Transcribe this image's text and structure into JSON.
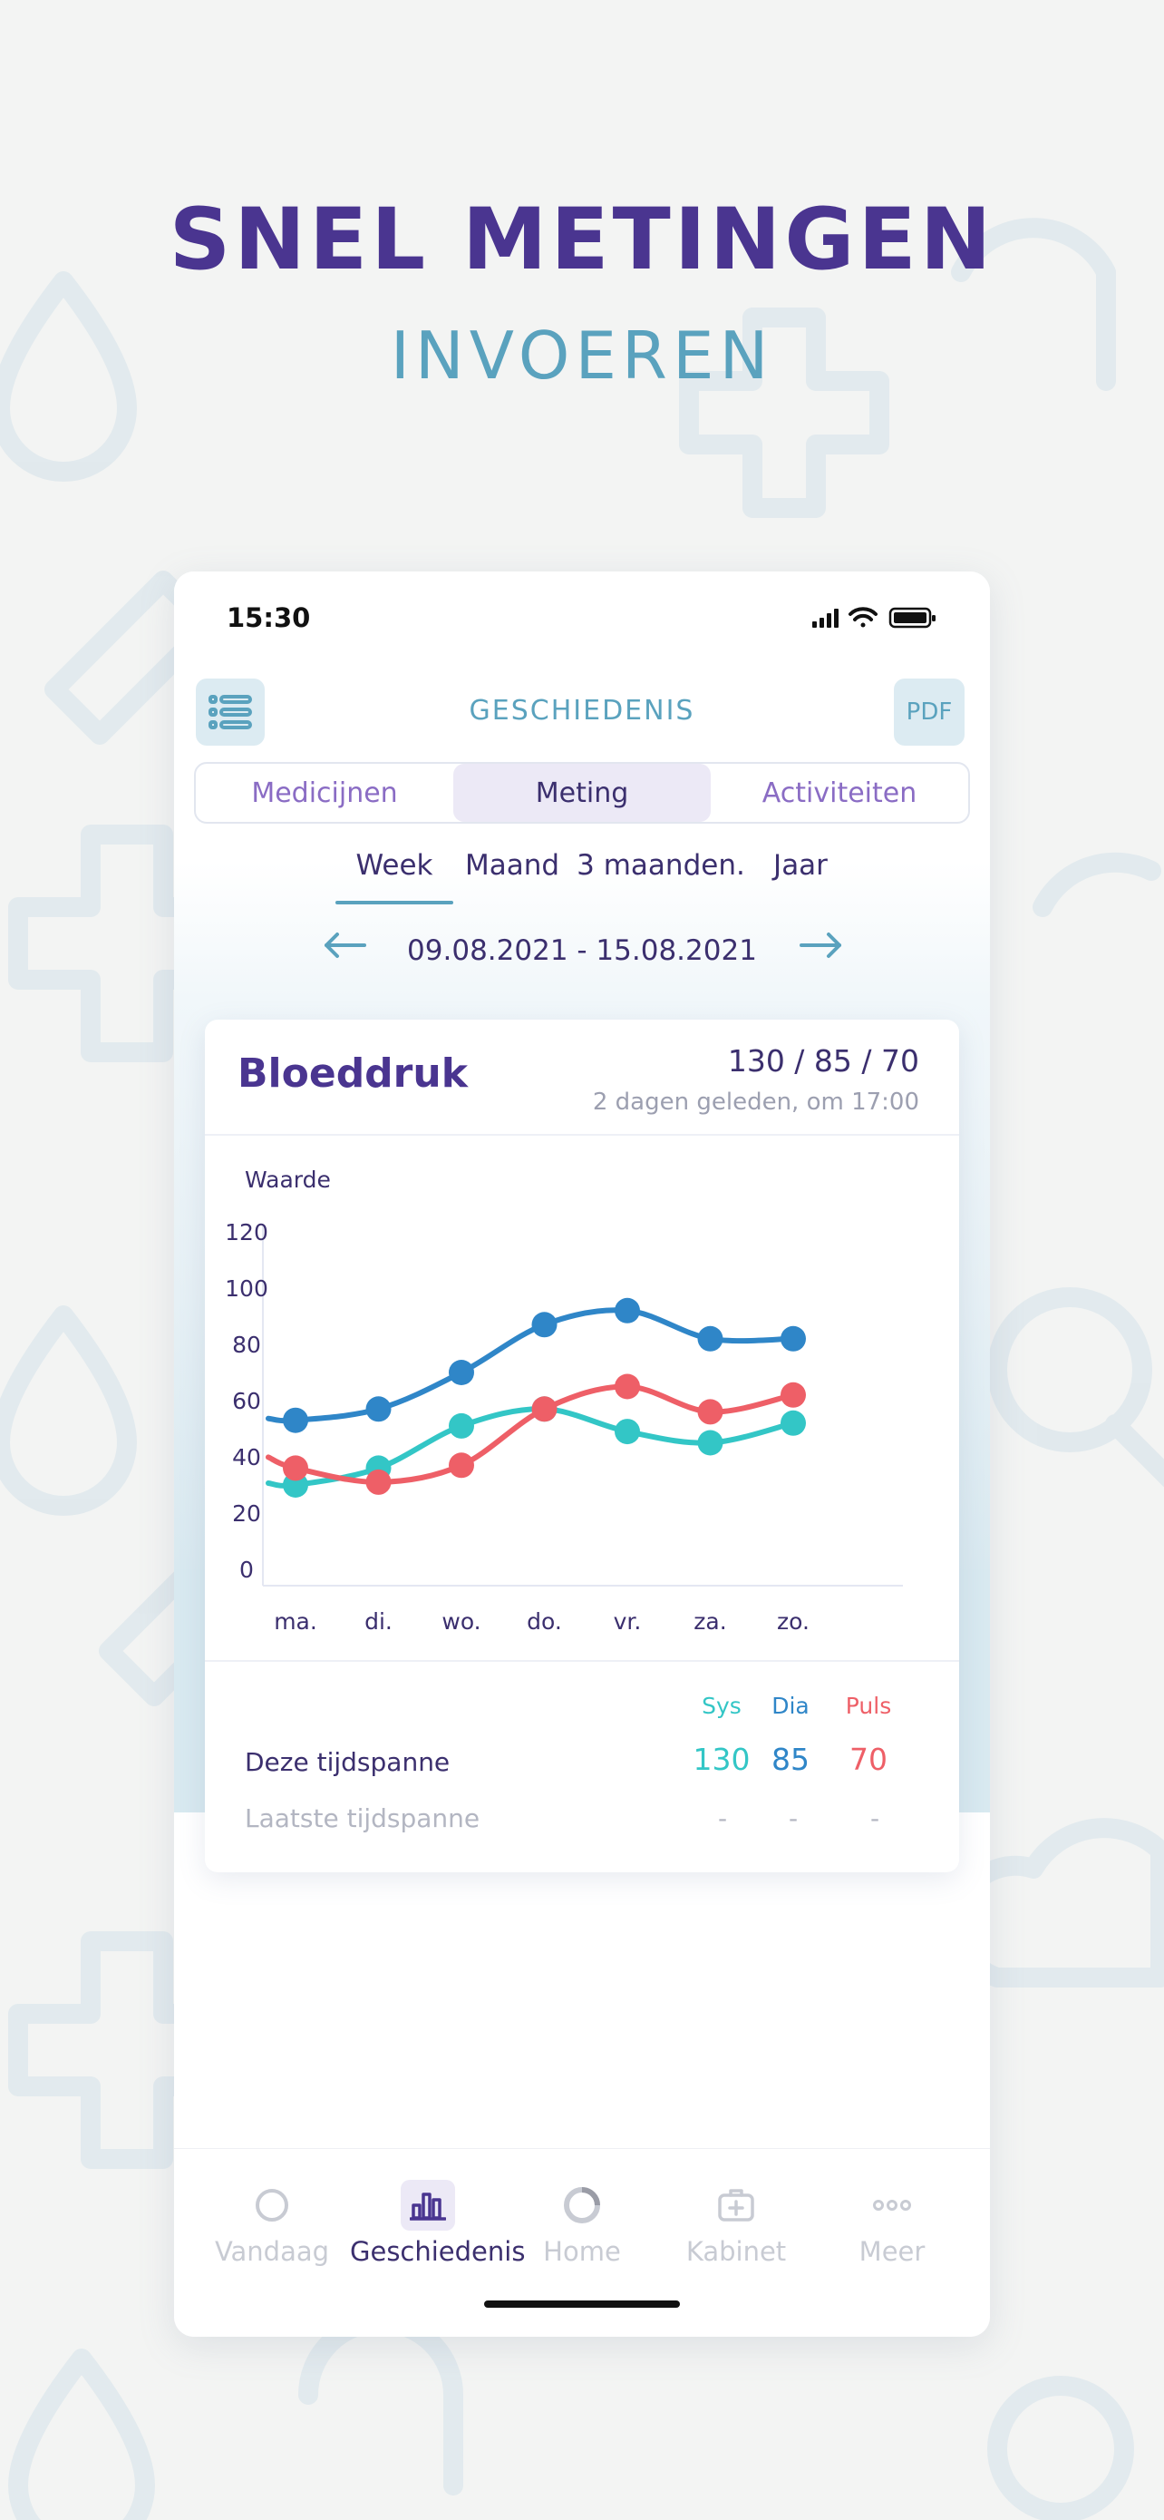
{
  "headline": {
    "line1": "SNEL METINGEN",
    "line2": "INVOEREN"
  },
  "status_bar": {
    "time": "15:30"
  },
  "header": {
    "title": "GESCHIEDENIS",
    "pdf_label": "PDF",
    "menu_icon": "list-icon"
  },
  "segments": {
    "items": [
      "Medicijnen",
      "Meting",
      "Activiteiten"
    ],
    "active": "Meting"
  },
  "periods": {
    "items": [
      "Week",
      "Maand",
      "3 maanden.",
      "Jaar"
    ],
    "active": "Week"
  },
  "date_range": {
    "label": "09.08.2021 - 15.08.2021",
    "prev_icon": "arrow-left-icon",
    "next_icon": "arrow-right-icon"
  },
  "card": {
    "title": "Bloeddruk",
    "latest_value": "130 / 85 / 70",
    "latest_time": "2 dagen geleden, om 17:00"
  },
  "chart_data": {
    "type": "line",
    "ylabel": "Waarde",
    "xlabel": "",
    "categories": [
      "ma.",
      "di.",
      "wo.",
      "do.",
      "vr.",
      "za.",
      "zo."
    ],
    "yticks": [
      0,
      20,
      40,
      60,
      80,
      100,
      120
    ],
    "ylim": [
      0,
      120
    ],
    "grid": false,
    "series": [
      {
        "values": [
          53,
          57,
          70,
          87,
          92,
          82,
          82
        ],
        "color": "#2f86c8"
      },
      {
        "values": [
          36,
          31,
          37,
          57,
          65,
          56,
          62
        ],
        "color": "#ee5f67"
      },
      {
        "values": [
          30,
          36,
          51,
          57,
          49,
          45,
          52
        ],
        "color": "#33c6c6"
      }
    ]
  },
  "summary": {
    "headers": [
      {
        "label": "Sys",
        "color": "#33c6c6"
      },
      {
        "label": "Dia",
        "color": "#2f86c8"
      },
      {
        "label": "Puls",
        "color": "#ee5f67"
      }
    ],
    "rows": [
      {
        "label": "Deze tijdspanne",
        "values": [
          "130",
          "85",
          "70"
        ]
      },
      {
        "label": "Laatste tijdspanne",
        "values": [
          "-",
          "-",
          "-"
        ]
      }
    ]
  },
  "tabbar": {
    "items": [
      {
        "label": "Vandaag",
        "icon": "circle-icon"
      },
      {
        "label": "Geschiedenis",
        "icon": "bar-chart-icon"
      },
      {
        "label": "Home",
        "icon": "ring-icon"
      },
      {
        "label": "Kabinet",
        "icon": "medkit-icon"
      },
      {
        "label": "Meer",
        "icon": "more-dots-icon"
      }
    ],
    "active": "Geschiedenis"
  },
  "colors": {
    "primary": "#4a3590",
    "accent": "#5aa2be",
    "sys": "#33c6c6",
    "dia": "#2f86c8",
    "puls": "#ee5f67"
  }
}
